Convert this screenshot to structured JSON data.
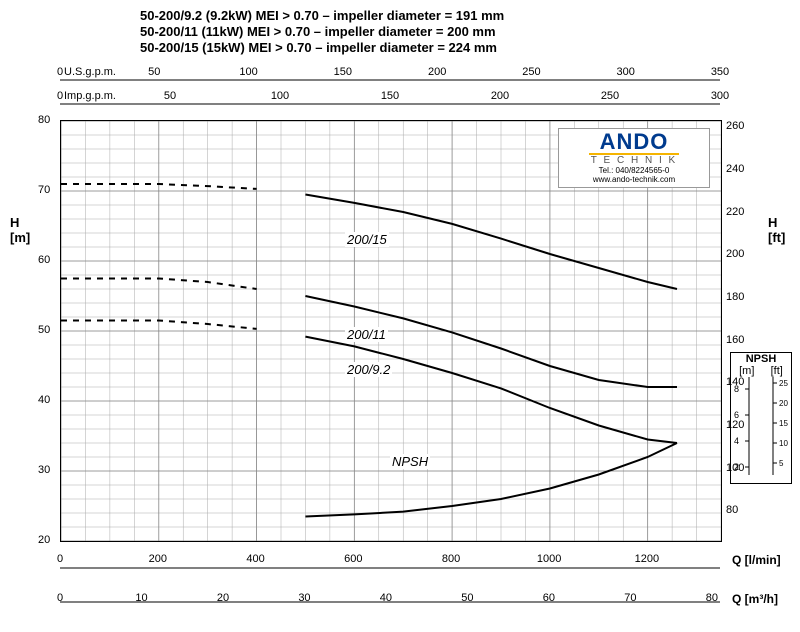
{
  "title": {
    "line1": "50-200/9.2 (9.2kW) MEI > 0.70 – impeller diameter = 191 mm",
    "line2": "50-200/11   (11kW) MEI > 0.70 – impeller diameter = 200 mm",
    "line3": "50-200/15   (15kW) MEI > 0.70 – impeller diameter = 224 mm"
  },
  "logo": {
    "name": "ANDO",
    "sub": "T E C H N I K",
    "tel": "Tel.: 040/8224565-0",
    "url": "www.ando-technik.com"
  },
  "axes": {
    "usgpm": {
      "label": "U.S.g.p.m.",
      "ticks": [
        0,
        50,
        100,
        150,
        200,
        250,
        300,
        350
      ],
      "min": 0,
      "max": 350
    },
    "impgpm": {
      "label": "Imp.g.p.m.",
      "ticks": [
        0,
        50,
        100,
        150,
        200,
        250,
        300
      ],
      "min": 0,
      "max": 300
    },
    "lmin": {
      "label": "Q [l/min]",
      "ticks": [
        0,
        200,
        400,
        600,
        800,
        1000,
        1200
      ],
      "min": 0,
      "max": 1350,
      "grid_step": 50
    },
    "m3h": {
      "label": "Q [m³/h]",
      "ticks": [
        0,
        10,
        20,
        30,
        40,
        50,
        60,
        70,
        80
      ],
      "min": 0,
      "max": 81
    },
    "Hm": {
      "label": "H\n[m]",
      "ticks": [
        20,
        30,
        40,
        50,
        60,
        70,
        80
      ],
      "min": 20,
      "max": 80,
      "grid_step": 2
    },
    "Hft": {
      "label": "H\n[ft]",
      "ticks": [
        80,
        100,
        120,
        140,
        160,
        180,
        200,
        220,
        240,
        260
      ],
      "min": 66,
      "max": 263
    }
  },
  "npsh": {
    "title": "NPSH",
    "m_label": "[m]",
    "ft_label": "[ft]",
    "m_ticks": [
      2,
      4,
      6,
      8
    ],
    "ft_ticks": [
      5,
      10,
      15,
      20,
      25
    ]
  },
  "colors": {
    "grid": "#aaaaaa",
    "curve": "#000000",
    "bg": "#ffffff",
    "logo_blue": "#003b8e",
    "logo_gold": "#f5b400"
  },
  "curves": {
    "c200_15": {
      "label": "200/15",
      "pts": [
        [
          0,
          71
        ],
        [
          100,
          71
        ],
        [
          200,
          71
        ],
        [
          300,
          70.7
        ],
        [
          400,
          70.3
        ],
        [
          500,
          69.5
        ],
        [
          600,
          68.3
        ],
        [
          700,
          67
        ],
        [
          800,
          65.3
        ],
        [
          900,
          63.2
        ],
        [
          1000,
          61
        ],
        [
          1100,
          59
        ],
        [
          1200,
          57
        ],
        [
          1260,
          56
        ]
      ],
      "dashed_until": 400
    },
    "c200_11": {
      "label": "200/11",
      "pts": [
        [
          0,
          57.5
        ],
        [
          100,
          57.5
        ],
        [
          200,
          57.5
        ],
        [
          300,
          57
        ],
        [
          400,
          56
        ],
        [
          500,
          55
        ],
        [
          600,
          53.5
        ],
        [
          700,
          51.8
        ],
        [
          800,
          49.8
        ],
        [
          900,
          47.5
        ],
        [
          1000,
          45
        ],
        [
          1100,
          43
        ],
        [
          1200,
          42
        ],
        [
          1260,
          42
        ]
      ],
      "dashed_until": 400
    },
    "c200_92": {
      "label": "200/9.2",
      "pts": [
        [
          0,
          51.5
        ],
        [
          100,
          51.5
        ],
        [
          200,
          51.5
        ],
        [
          300,
          51
        ],
        [
          400,
          50.3
        ],
        [
          500,
          49.2
        ],
        [
          600,
          47.8
        ],
        [
          700,
          46
        ],
        [
          800,
          44
        ],
        [
          900,
          41.8
        ],
        [
          1000,
          39
        ],
        [
          1100,
          36.5
        ],
        [
          1200,
          34.5
        ],
        [
          1260,
          34
        ]
      ],
      "dashed_until": 400
    },
    "npsh_curve": {
      "label": "NPSH",
      "pts": [
        [
          500,
          23.5
        ],
        [
          600,
          23.8
        ],
        [
          700,
          24.2
        ],
        [
          800,
          25
        ],
        [
          900,
          26
        ],
        [
          1000,
          27.5
        ],
        [
          1100,
          29.5
        ],
        [
          1200,
          32
        ],
        [
          1260,
          34
        ]
      ]
    }
  },
  "fontsize": {
    "title": 13,
    "tick": 11,
    "axis_label": 13,
    "curve_label": 13
  }
}
